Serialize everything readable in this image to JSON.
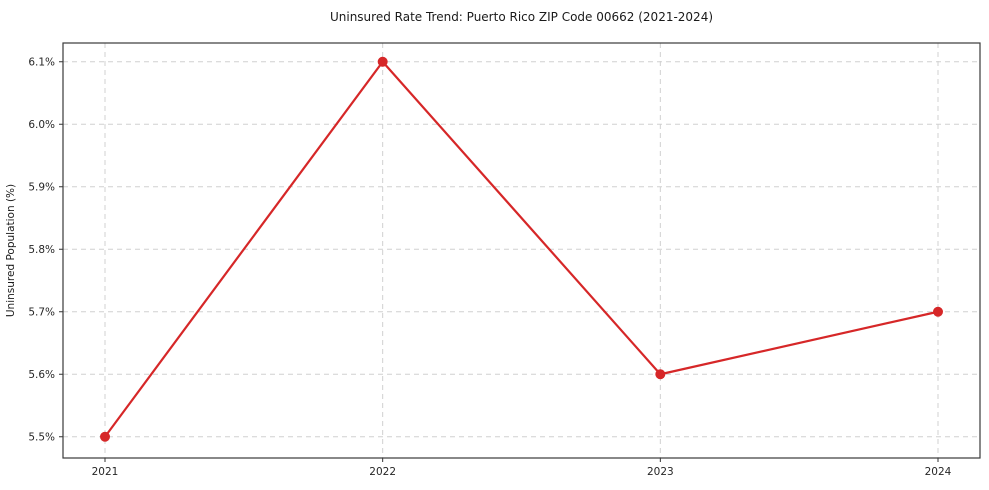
{
  "chart_data": {
    "type": "line",
    "title": "Uninsured Rate Trend: Puerto Rico ZIP Code 00662 (2021-2024)",
    "xlabel": "",
    "ylabel": "Uninsured Population (%)",
    "x": [
      2021,
      2022,
      2023,
      2024
    ],
    "x_tick_labels": [
      "2021",
      "2022",
      "2023",
      "2024"
    ],
    "values": [
      5.5,
      6.1,
      5.6,
      5.7
    ],
    "y_tick_values": [
      5.5,
      5.6,
      5.7,
      5.8,
      5.9,
      6.0,
      6.1
    ],
    "y_tick_labels": [
      "5.5%",
      "5.6%",
      "5.7%",
      "5.8%",
      "5.9%",
      "6.0%",
      "6.1%"
    ],
    "ylim": [
      5.466,
      6.13
    ],
    "line_color": "#d62728",
    "marker": "circle",
    "marker_radius": 5,
    "grid": "dashed",
    "legend": "none",
    "background": "#ffffff"
  }
}
